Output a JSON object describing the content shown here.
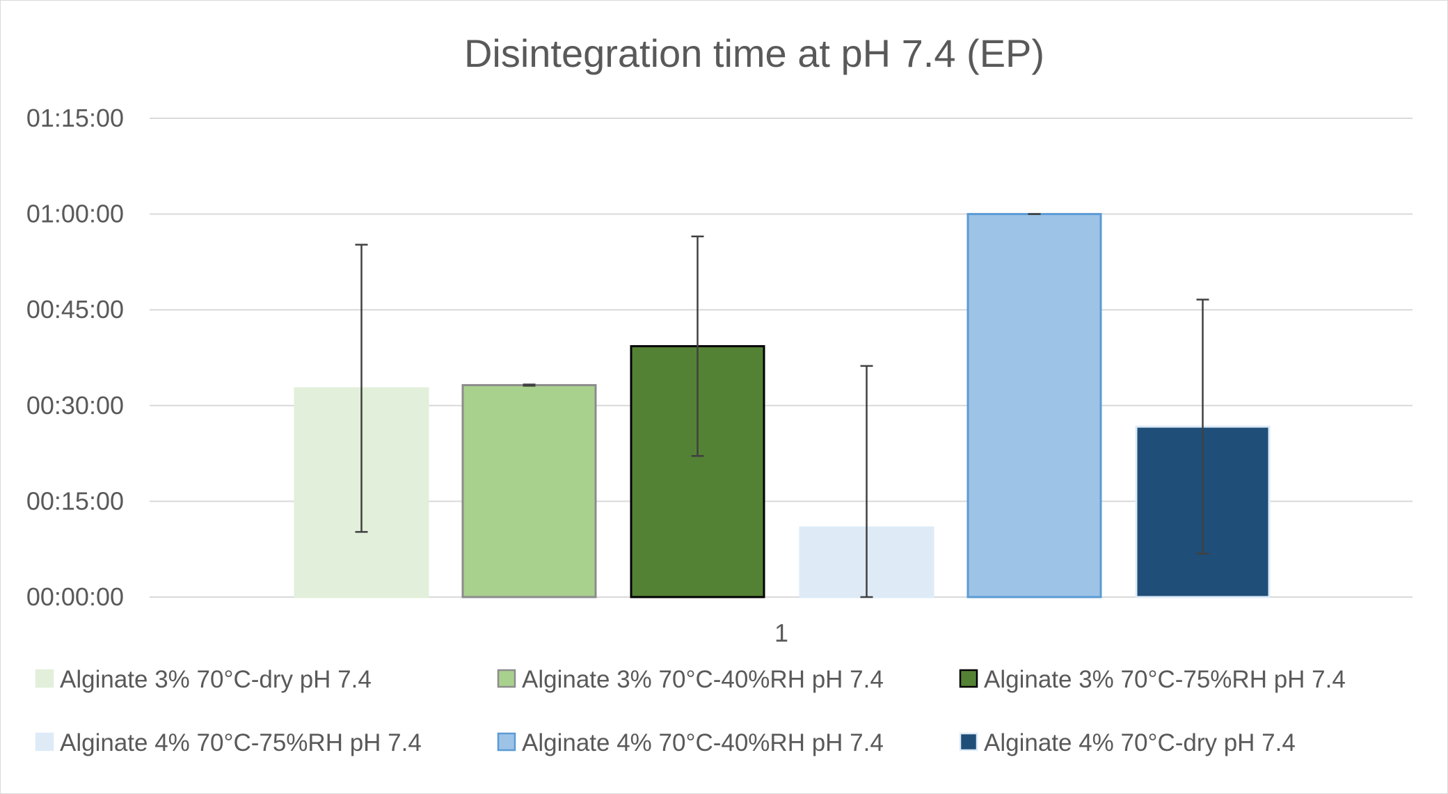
{
  "chart_data": {
    "type": "bar",
    "title": "Disintegration time at pH 7.4 (EP)",
    "categories": [
      "1"
    ],
    "y_tick_labels": [
      "00:00:00",
      "00:15:00",
      "00:30:00",
      "00:45:00",
      "01:00:00",
      "01:15:00"
    ],
    "y_unit": "minutes",
    "ylim": [
      0,
      75
    ],
    "grid": true,
    "legend_position": "bottom",
    "series": [
      {
        "name": "Alginate 3%  70°C-dry  pH 7.4",
        "values": [
          32.7
        ],
        "error": [
          22.5
        ],
        "fill": "#e2efda",
        "stroke": "#e2efda"
      },
      {
        "name": "Alginate 3%  70°C-40%RH  pH 7.4",
        "values": [
          33.2
        ],
        "error": [
          0.1
        ],
        "fill": "#a9d18e",
        "stroke": "#8c8c8c"
      },
      {
        "name": "Alginate 3%  70°C-75%RH  pH 7.4",
        "values": [
          39.3
        ],
        "error": [
          17.2
        ],
        "fill": "#548235",
        "stroke": "#000000"
      },
      {
        "name": "Alginate 4%  70°C-75%RH  pH 7.4",
        "values": [
          10.9
        ],
        "error": [
          25.3
        ],
        "fill": "#deebf7",
        "stroke": "#deebf7"
      },
      {
        "name": "Alginate 4%  70°C-40%RH  pH 7.4",
        "values": [
          60.0
        ],
        "error": [
          0.0
        ],
        "fill": "#9dc3e6",
        "stroke": "#5b9bd5"
      },
      {
        "name": "Alginate 4%  70°C-dry  pH 7.4",
        "values": [
          26.7
        ],
        "error": [
          19.9
        ],
        "fill": "#1f4e79",
        "stroke": "#deebf7"
      }
    ]
  },
  "colors": {
    "gridline": "#d9d9d9",
    "error_bar": "#404040",
    "text": "#595959"
  }
}
